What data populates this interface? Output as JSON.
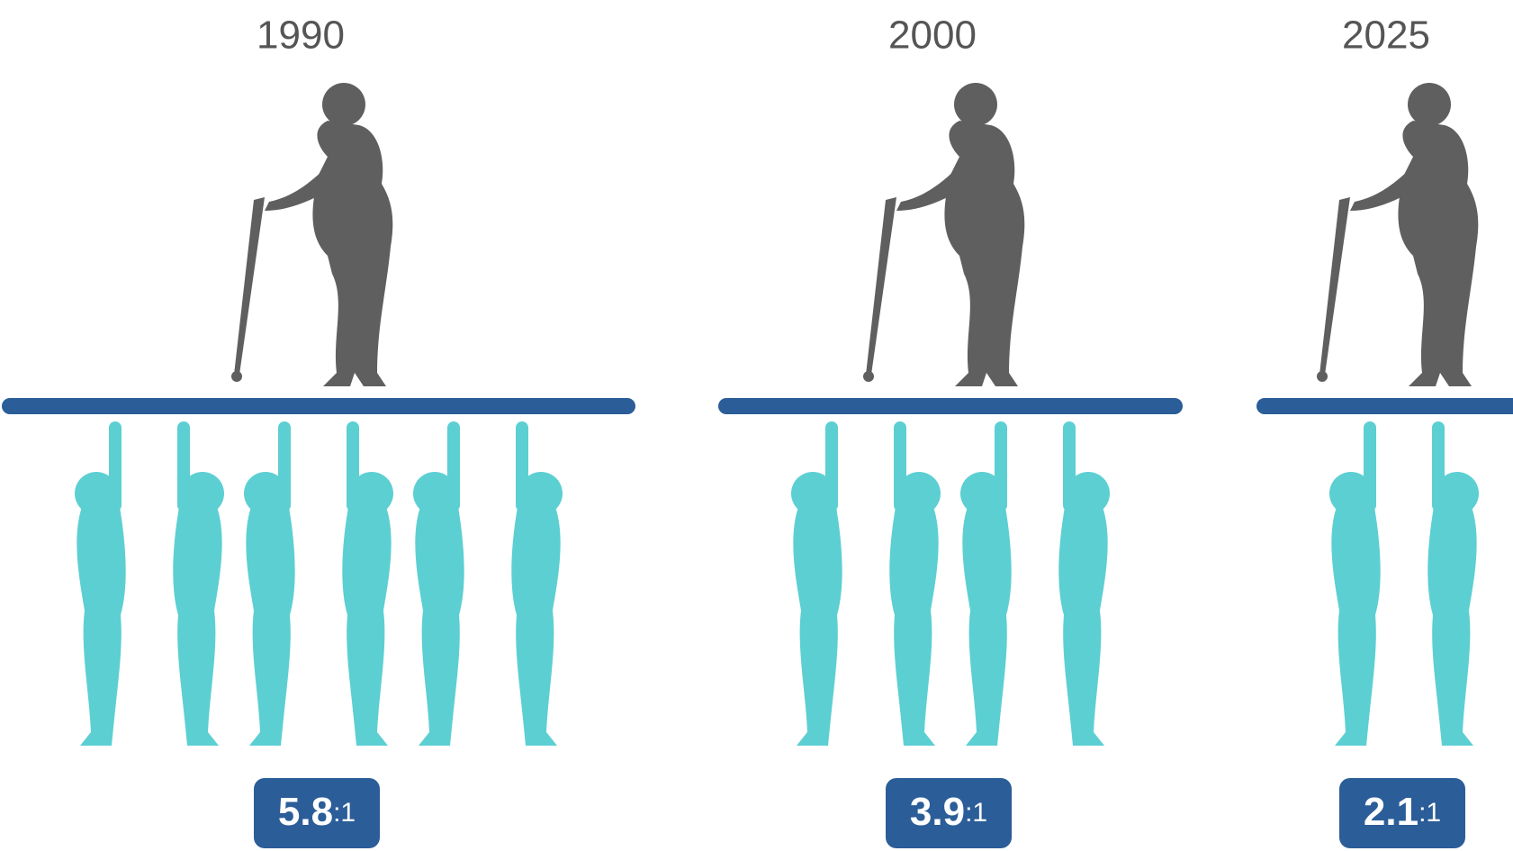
{
  "panels": [
    {
      "year": "1990",
      "ratio": "5.8",
      "suffix": ":1",
      "figures": 6
    },
    {
      "year": "2000",
      "ratio": "3.9",
      "suffix": ":1",
      "figures": 4
    },
    {
      "year": "2025",
      "ratio": "2.1",
      "suffix": ":1",
      "figures": 2
    }
  ]
}
